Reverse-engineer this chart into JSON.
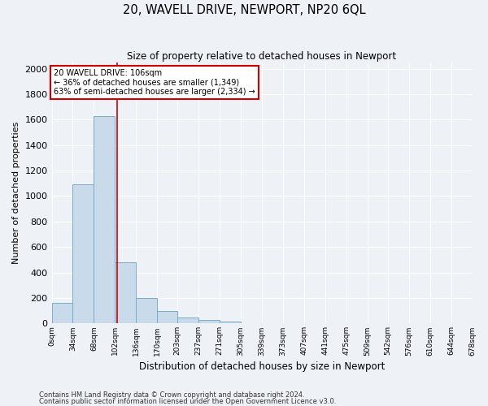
{
  "title": "20, WAVELL DRIVE, NEWPORT, NP20 6QL",
  "subtitle": "Size of property relative to detached houses in Newport",
  "xlabel": "Distribution of detached houses by size in Newport",
  "ylabel": "Number of detached properties",
  "bar_color": "#c9daea",
  "bar_edge_color": "#7aacc8",
  "background_color": "#eef2f7",
  "grid_color": "#ffffff",
  "annotation_title": "20 WAVELL DRIVE: 106sqm",
  "annotation_line2": "← 36% of detached houses are smaller (1,349)",
  "annotation_line3": "63% of semi-detached houses are larger (2,334) →",
  "annotation_box_color": "#ffffff",
  "annotation_box_edge": "#cc0000",
  "property_line_value": 106,
  "property_line_color": "#cc0000",
  "footnote1": "Contains HM Land Registry data © Crown copyright and database right 2024.",
  "footnote2": "Contains public sector information licensed under the Open Government Licence v3.0.",
  "bin_labels": [
    "0sqm",
    "34sqm",
    "68sqm",
    "102sqm",
    "136sqm",
    "170sqm",
    "203sqm",
    "237sqm",
    "271sqm",
    "305sqm",
    "339sqm",
    "373sqm",
    "407sqm",
    "441sqm",
    "475sqm",
    "509sqm",
    "542sqm",
    "576sqm",
    "610sqm",
    "644sqm",
    "678sqm"
  ],
  "bin_edges": [
    0,
    34,
    68,
    102,
    136,
    170,
    203,
    237,
    271,
    305,
    339,
    373,
    407,
    441,
    475,
    509,
    542,
    576,
    610,
    644,
    678
  ],
  "bar_heights": [
    160,
    1095,
    1630,
    480,
    200,
    100,
    45,
    25,
    15,
    0,
    0,
    0,
    0,
    0,
    0,
    0,
    0,
    0,
    0,
    0
  ],
  "ylim": [
    0,
    2050
  ],
  "yticks": [
    0,
    200,
    400,
    600,
    800,
    1000,
    1200,
    1400,
    1600,
    1800,
    2000
  ]
}
